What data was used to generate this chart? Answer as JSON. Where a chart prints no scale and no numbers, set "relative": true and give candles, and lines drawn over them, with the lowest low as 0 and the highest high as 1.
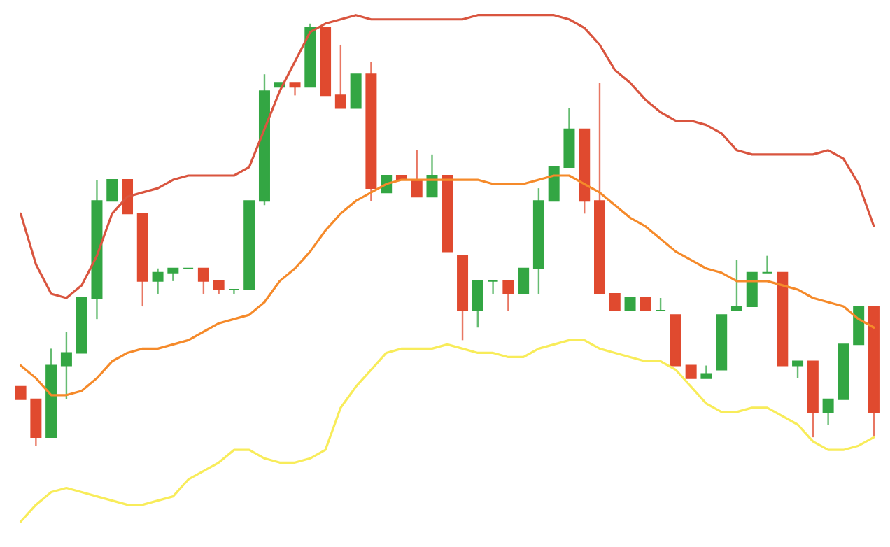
{
  "chart_data": {
    "type": "candlestick",
    "relative": true,
    "categories": [
      null,
      null,
      null,
      null,
      null,
      null,
      null,
      null,
      null,
      null,
      null,
      null,
      null,
      null,
      null,
      null,
      null,
      null,
      null,
      null,
      null,
      null,
      null,
      null,
      null,
      null,
      null,
      null,
      null,
      null,
      null,
      null,
      null,
      null,
      null,
      null,
      null,
      null,
      null,
      null,
      null,
      null,
      null,
      null,
      null,
      null,
      null,
      null,
      null,
      null,
      null,
      null,
      null,
      null,
      null,
      null,
      null
    ],
    "ohlc": [
      [
        0.14,
        0.14,
        0.11,
        0.11
      ],
      [
        0.11,
        0.11,
        0,
        0.02
      ],
      [
        0.02,
        0.23,
        0.02,
        0.19
      ],
      [
        0.19,
        0.27,
        0.11,
        0.22
      ],
      [
        0.22,
        0.35,
        0.22,
        0.35
      ],
      [
        0.35,
        0.63,
        0.3,
        0.58
      ],
      [
        0.58,
        0.63,
        0.58,
        0.63
      ],
      [
        0.63,
        0.63,
        0.55,
        0.55
      ],
      [
        0.55,
        0.55,
        0.33,
        0.39
      ],
      [
        0.39,
        0.42,
        0.36,
        0.41
      ],
      [
        0.41,
        0.42,
        0.39,
        0.42
      ],
      [
        0.42,
        0.42,
        0.42,
        0.42
      ],
      [
        0.42,
        0.42,
        0.36,
        0.39
      ],
      [
        0.39,
        0.39,
        0.36,
        0.37
      ],
      [
        0.37,
        0.37,
        0.36,
        0.37
      ],
      [
        0.37,
        0.58,
        0.37,
        0.58
      ],
      [
        0.58,
        0.88,
        0.57,
        0.84
      ],
      [
        0.85,
        0.86,
        0.85,
        0.86
      ],
      [
        0.86,
        0.86,
        0.83,
        0.85
      ],
      [
        0.85,
        1,
        0.85,
        0.99
      ],
      [
        0.99,
        0.99,
        0.83,
        0.83
      ],
      [
        0.83,
        0.95,
        0.8,
        0.8
      ],
      [
        0.8,
        0.88,
        0.8,
        0.88
      ],
      [
        0.88,
        0.91,
        0.58,
        0.61
      ],
      [
        0.6,
        0.64,
        0.6,
        0.64
      ],
      [
        0.64,
        0.64,
        0.63,
        0.63
      ],
      [
        0.63,
        0.7,
        0.59,
        0.59
      ],
      [
        0.59,
        0.69,
        0.59,
        0.64
      ],
      [
        0.64,
        0.64,
        0.46,
        0.46
      ],
      [
        0.45,
        0.45,
        0.25,
        0.32
      ],
      [
        0.32,
        0.39,
        0.28,
        0.39
      ],
      [
        0.39,
        0.39,
        0.36,
        0.39
      ],
      [
        0.39,
        0.39,
        0.32,
        0.36
      ],
      [
        0.36,
        0.42,
        0.36,
        0.42
      ],
      [
        0.42,
        0.61,
        0.36,
        0.58
      ],
      [
        0.58,
        0.66,
        0.58,
        0.66
      ],
      [
        0.66,
        0.8,
        0.66,
        0.75
      ],
      [
        0.75,
        0.75,
        0.55,
        0.58
      ],
      [
        0.58,
        0.86,
        0.36,
        0.36
      ],
      [
        0.36,
        0.36,
        0.32,
        0.32
      ],
      [
        0.32,
        0.35,
        0.32,
        0.35
      ],
      [
        0.35,
        0.35,
        0.32,
        0.32
      ],
      [
        0.32,
        0.35,
        0.32,
        0.32
      ],
      [
        0.31,
        0.31,
        0.19,
        0.19
      ],
      [
        0.19,
        0.19,
        0.16,
        0.16
      ],
      [
        0.16,
        0.19,
        0.16,
        0.17
      ],
      [
        0.18,
        0.31,
        0.18,
        0.31
      ],
      [
        0.32,
        0.44,
        0.32,
        0.33
      ],
      [
        0.33,
        0.41,
        0.33,
        0.41
      ],
      [
        0.41,
        0.45,
        0.41,
        0.41
      ],
      [
        0.41,
        0.41,
        0.19,
        0.19
      ],
      [
        0.19,
        0.2,
        0.16,
        0.2
      ],
      [
        0.2,
        0.2,
        0.02,
        0.08
      ],
      [
        0.08,
        0.11,
        0.05,
        0.11
      ],
      [
        0.11,
        0.24,
        0.11,
        0.24
      ],
      [
        0.24,
        0.33,
        0.24,
        0.33
      ],
      [
        0.33,
        0.33,
        0.02,
        0.08
      ]
    ],
    "colors": [
      "#e04a2f",
      "#e04a2f",
      "#33a643",
      "#33a643",
      "#33a643",
      "#33a643",
      "#33a643",
      "#e04a2f",
      "#e04a2f",
      "#33a643",
      "#33a643",
      "#33a643",
      "#e04a2f",
      "#e04a2f",
      "#33a643",
      "#33a643",
      "#33a643",
      "#33a643",
      "#e04a2f",
      "#33a643",
      "#e04a2f",
      "#e04a2f",
      "#33a643",
      "#e04a2f",
      "#33a643",
      "#e04a2f",
      "#e04a2f",
      "#33a643",
      "#e04a2f",
      "#e04a2f",
      "#33a643",
      "#33a643",
      "#e04a2f",
      "#33a643",
      "#33a643",
      "#33a643",
      "#33a643",
      "#e04a2f",
      "#e04a2f",
      "#e04a2f",
      "#33a643",
      "#e04a2f",
      "#33a643",
      "#e04a2f",
      "#e04a2f",
      "#33a643",
      "#33a643",
      "#33a643",
      "#33a643",
      "#33a643",
      "#e04a2f",
      "#33a643",
      "#e04a2f",
      "#33a643",
      "#33a643",
      "#33a643",
      "#e04a2f"
    ],
    "series": [
      {
        "type": "line",
        "color": "#d9553f",
        "values": [
          0.55,
          0.43,
          0.36,
          0.35,
          0.38,
          0.45,
          0.55,
          0.59,
          0.6,
          0.61,
          0.63,
          0.64,
          0.64,
          0.64,
          0.64,
          0.66,
          0.75,
          0.84,
          0.91,
          0.98,
          1.0,
          1.01,
          1.02,
          1.01,
          1.01,
          1.01,
          1.01,
          1.01,
          1.01,
          1.01,
          1.02,
          1.02,
          1.02,
          1.02,
          1.02,
          1.02,
          1.01,
          0.99,
          0.95,
          0.89,
          0.86,
          0.82,
          0.79,
          0.77,
          0.77,
          0.76,
          0.74,
          0.7,
          0.69,
          0.69,
          0.69,
          0.69,
          0.69,
          0.7,
          0.68,
          0.62,
          0.52
        ]
      },
      {
        "type": "line",
        "color": "#f58a2a",
        "values": [
          0.19,
          0.16,
          0.12,
          0.12,
          0.13,
          0.16,
          0.2,
          0.22,
          0.23,
          0.23,
          0.24,
          0.25,
          0.27,
          0.29,
          0.3,
          0.31,
          0.34,
          0.39,
          0.42,
          0.46,
          0.51,
          0.55,
          0.58,
          0.6,
          0.62,
          0.63,
          0.63,
          0.63,
          0.63,
          0.63,
          0.63,
          0.62,
          0.62,
          0.62,
          0.63,
          0.64,
          0.64,
          0.62,
          0.6,
          0.57,
          0.54,
          0.52,
          0.49,
          0.46,
          0.44,
          0.42,
          0.41,
          0.39,
          0.39,
          0.39,
          0.38,
          0.37,
          0.35,
          0.34,
          0.33,
          0.3,
          0.28
        ]
      },
      {
        "type": "line",
        "color": "#f8ec5a",
        "values": [
          -0.18,
          -0.14,
          -0.11,
          -0.1,
          -0.11,
          -0.12,
          -0.13,
          -0.14,
          -0.14,
          -0.13,
          -0.12,
          -0.08,
          -0.06,
          -0.04,
          -0.01,
          -0.01,
          -0.03,
          -0.04,
          -0.04,
          -0.03,
          -0.01,
          0.09,
          0.14,
          0.18,
          0.22,
          0.23,
          0.23,
          0.23,
          0.24,
          0.23,
          0.22,
          0.22,
          0.21,
          0.21,
          0.23,
          0.24,
          0.25,
          0.25,
          0.23,
          0.22,
          0.21,
          0.2,
          0.2,
          0.18,
          0.14,
          0.1,
          0.08,
          0.08,
          0.09,
          0.09,
          0.07,
          0.05,
          0.01,
          -0.01,
          -0.01,
          0.0,
          0.02
        ]
      }
    ]
  }
}
